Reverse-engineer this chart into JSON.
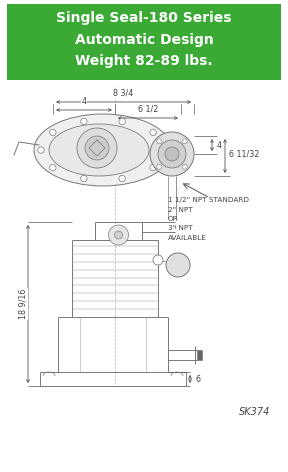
{
  "title_line1": "Single Seal-180 Series",
  "title_line2": "Automatic Design",
  "title_line3": "Weight 82-89 lbs.",
  "title_bg_color": "#3aaa35",
  "title_text_color": "#ffffff",
  "bg_color": "#ffffff",
  "drawing_color": "#777777",
  "dim_color": "#555555",
  "dim_text_color": "#444444",
  "sk_label": "SK374",
  "dim_top1": "4",
  "dim_top2": "8 3/4",
  "dim_top3": "6 1/2",
  "dim_right1": "4",
  "dim_right2": "6 11/32",
  "dim_left": "18 9/16",
  "dim_bottom": "6",
  "npt_line1": "1 1/2\" NPT STANDARD",
  "npt_line2": "2\" NPT",
  "npt_line3": "OR",
  "npt_line4": "3\" NPT",
  "npt_line5": "AVAILABLE"
}
